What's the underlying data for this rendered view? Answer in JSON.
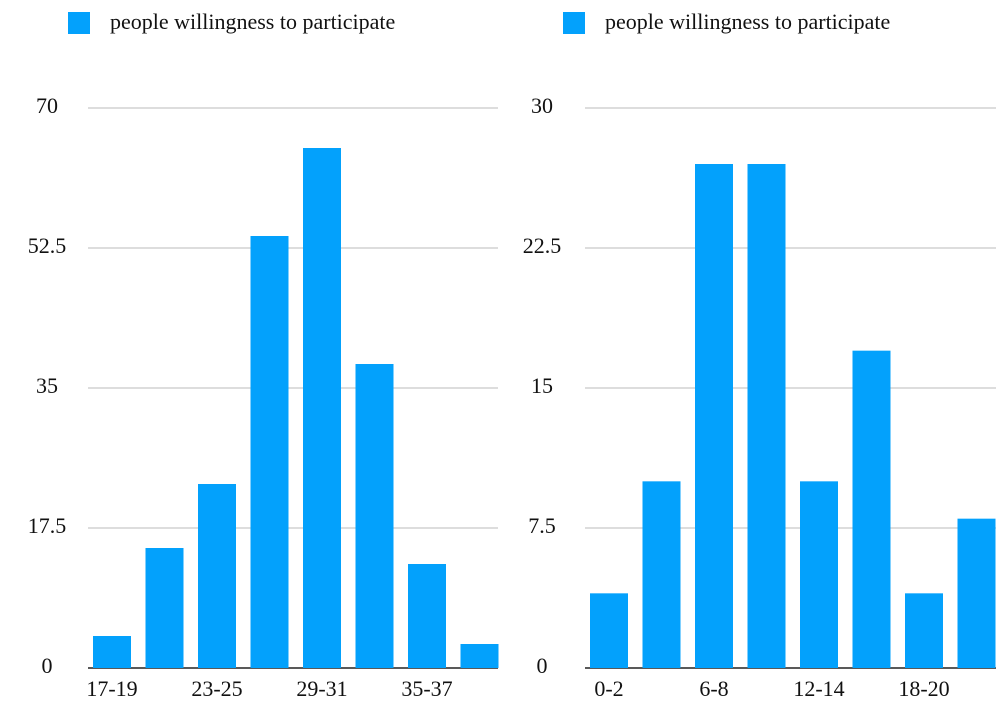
{
  "chart_data": [
    {
      "type": "bar",
      "categories": [
        "17-19",
        null,
        "23-25",
        null,
        "29-31",
        null,
        "35-37",
        null
      ],
      "series": [
        {
          "name": "people willingness to participate",
          "color": "#03a1fc",
          "values": [
            4,
            15,
            23,
            54,
            65,
            38,
            13,
            3
          ]
        }
      ],
      "ylim": [
        0,
        70
      ],
      "yticks": [
        0,
        17.5,
        35,
        52.5,
        70
      ],
      "grid": true,
      "legend": "top"
    },
    {
      "type": "bar",
      "categories": [
        "0-2",
        null,
        "6-8",
        null,
        "12-14",
        null,
        "18-20",
        null
      ],
      "series": [
        {
          "name": "people willingness to participate",
          "color": "#03a1fc",
          "values": [
            4,
            10,
            27,
            27,
            10,
            17,
            4,
            8
          ]
        }
      ],
      "ylim": [
        0,
        30
      ],
      "yticks": [
        0,
        7.5,
        15,
        22.5,
        30
      ],
      "grid": true,
      "legend": "top"
    }
  ]
}
